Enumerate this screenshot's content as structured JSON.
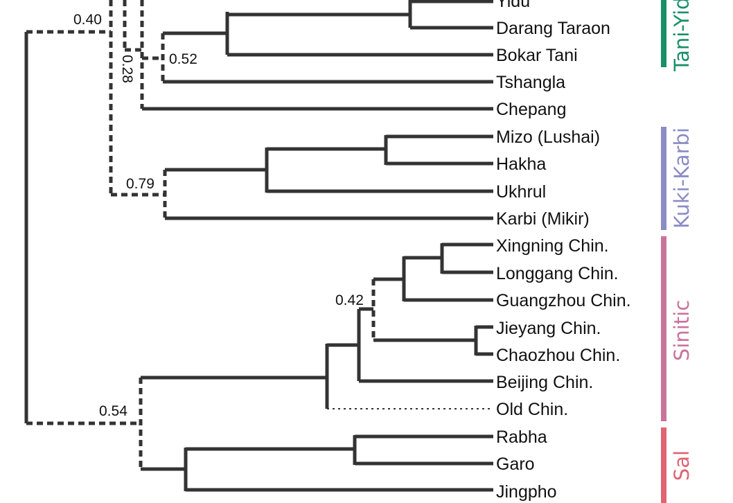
{
  "taxa": [
    "Yidu",
    "Darang Taraon",
    "Bokar Tani",
    "Tshangla",
    "Chepang",
    "Mizo (Lushai)",
    "Hakha",
    "Ukhrul",
    "Karbi (Mikir)",
    "Xingning Chin.",
    "Longgang Chin.",
    "Guangzhou Chin.",
    "Jieyang Chin.",
    "Chaozhou Chin.",
    "Beijing Chin.",
    "Old Chin.",
    "Rabha",
    "Garo",
    "Jingpho"
  ],
  "support_values": {
    "root_top": "0.40",
    "tani_tshangla": "0.52",
    "upper_chepang": "0.28",
    "kuki_karbi": "0.79",
    "chinese_core": "0.42",
    "sinitic_sal": "0.54"
  },
  "groups": [
    {
      "name": "Tani-Yidu",
      "color": "#1a9068"
    },
    {
      "name": "Kuki-Karbi",
      "color": "#8a8cc4"
    },
    {
      "name": "Sinitic",
      "color": "#c9739b"
    },
    {
      "name": "Sal",
      "color": "#e06472"
    }
  ]
}
